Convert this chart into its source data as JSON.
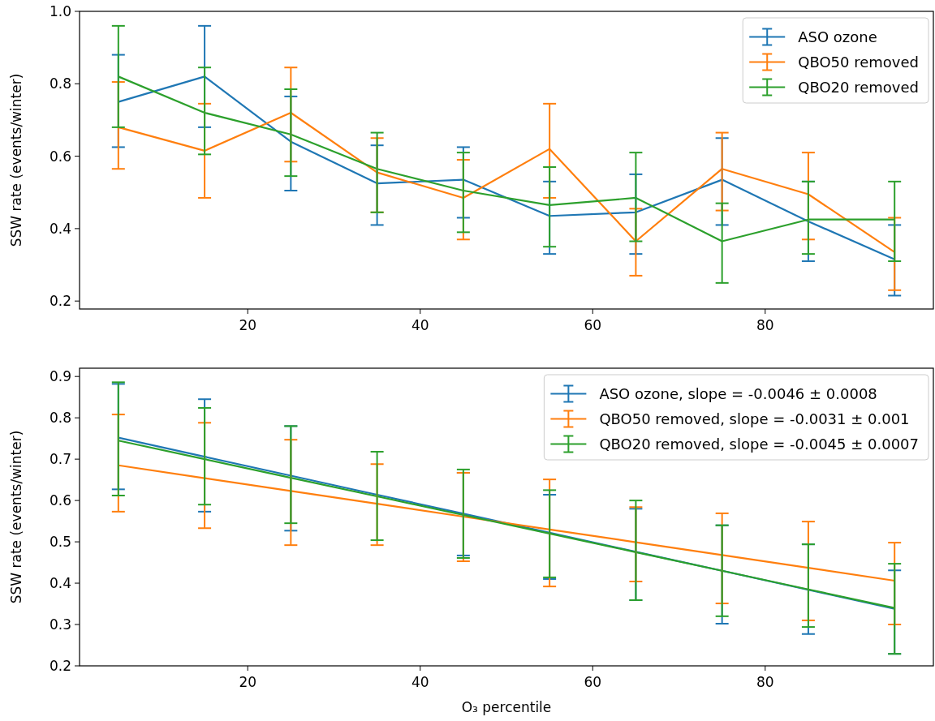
{
  "chart_data": [
    {
      "type": "line",
      "ylabel": "SSW rate (events/winter)",
      "x": [
        5,
        15,
        25,
        35,
        45,
        55,
        65,
        75,
        85,
        95
      ],
      "xlim": [
        0.5,
        99.5
      ],
      "xticks": [
        20,
        40,
        60,
        80
      ],
      "ylim": [
        0.178,
        1.0
      ],
      "yticks": [
        0.2,
        0.4,
        0.6,
        0.8,
        {
          "value": 1.0,
          "label": "1.0"
        }
      ],
      "legend": "top right",
      "series": [
        {
          "name": "ASO ozone",
          "color": "#1f77b4",
          "values": [
            0.75,
            0.82,
            0.64,
            0.525,
            0.535,
            0.435,
            0.445,
            0.535,
            0.42,
            0.315
          ],
          "errors": [
            [
              0.625,
              0.88
            ],
            [
              0.68,
              0.96
            ],
            [
              0.505,
              0.765
            ],
            [
              0.41,
              0.63
            ],
            [
              0.43,
              0.625
            ],
            [
              0.33,
              0.53
            ],
            [
              0.33,
              0.55
            ],
            [
              0.41,
              0.65
            ],
            [
              0.31,
              0.53
            ],
            [
              0.215,
              0.41
            ]
          ]
        },
        {
          "name": "QBO50  removed",
          "color": "#ff7f0e",
          "values": [
            0.68,
            0.615,
            0.72,
            0.555,
            0.485,
            0.62,
            0.365,
            0.565,
            0.495,
            0.335
          ],
          "errors": [
            [
              0.565,
              0.805
            ],
            [
              0.485,
              0.745
            ],
            [
              0.585,
              0.845
            ],
            [
              0.445,
              0.65
            ],
            [
              0.37,
              0.59
            ],
            [
              0.485,
              0.745
            ],
            [
              0.27,
              0.455
            ],
            [
              0.45,
              0.665
            ],
            [
              0.37,
              0.61
            ],
            [
              0.23,
              0.43
            ]
          ]
        },
        {
          "name": "QBO20 removed",
          "color": "#2ca02c",
          "values": [
            0.82,
            0.72,
            0.66,
            0.565,
            0.505,
            0.465,
            0.485,
            0.365,
            0.425,
            0.425
          ],
          "errors": [
            [
              0.68,
              0.96
            ],
            [
              0.605,
              0.845
            ],
            [
              0.545,
              0.785
            ],
            [
              0.445,
              0.665
            ],
            [
              0.39,
              0.61
            ],
            [
              0.35,
              0.57
            ],
            [
              0.365,
              0.61
            ],
            [
              0.25,
              0.47
            ],
            [
              0.33,
              0.53
            ],
            [
              0.31,
              0.53
            ]
          ]
        }
      ]
    },
    {
      "type": "line",
      "xlabel": "O₃ percentile",
      "ylabel": "SSW rate (events/winter)",
      "x": [
        5,
        15,
        25,
        35,
        45,
        55,
        65,
        75,
        85,
        95
      ],
      "xlim": [
        0.5,
        99.5
      ],
      "xticks": [
        20,
        40,
        60,
        80
      ],
      "ylim": [
        0.2,
        0.92
      ],
      "yticks": [
        0.2,
        0.3,
        0.4,
        0.5,
        0.6,
        0.7,
        0.8,
        0.9
      ],
      "legend": "top right",
      "series": [
        {
          "name": "ASO ozone, slope = -0.0046 ± 0.0008",
          "color": "#1f77b4",
          "values": [
            0.752,
            0.706,
            0.66,
            0.614,
            0.568,
            0.522,
            0.476,
            0.43,
            0.384,
            0.338
          ],
          "errors": [
            [
              0.627,
              0.882
            ],
            [
              0.573,
              0.845
            ],
            [
              0.527,
              0.78
            ],
            null,
            [
              0.467,
              0.667
            ],
            [
              0.41,
              0.614
            ],
            [
              0.359,
              0.58
            ],
            [
              0.302,
              0.54
            ],
            [
              0.277,
              0.494
            ],
            [
              0.229,
              0.431
            ]
          ]
        },
        {
          "name": "QBO50  removed, slope = -0.0031 ± 0.001",
          "color": "#ff7f0e",
          "values": [
            0.685,
            0.654,
            0.623,
            0.592,
            0.561,
            0.53,
            0.499,
            0.468,
            0.437,
            0.406
          ],
          "errors": [
            [
              0.573,
              0.808
            ],
            [
              0.533,
              0.788
            ],
            [
              0.492,
              0.747
            ],
            [
              0.492,
              0.688
            ],
            [
              0.453,
              0.667
            ],
            [
              0.392,
              0.651
            ],
            [
              0.404,
              0.584
            ],
            [
              0.351,
              0.569
            ],
            [
              0.31,
              0.549
            ],
            [
              0.3,
              0.498
            ]
          ]
        },
        {
          "name": "QBO20 removed, slope = -0.0045 ± 0.0007",
          "color": "#2ca02c",
          "values": [
            0.745,
            0.7,
            0.655,
            0.61,
            0.565,
            0.52,
            0.475,
            0.43,
            0.385,
            0.34
          ],
          "errors": [
            [
              0.612,
              0.886
            ],
            [
              0.59,
              0.824
            ],
            [
              0.545,
              0.78
            ],
            [
              0.504,
              0.718
            ],
            [
              0.461,
              0.675
            ],
            [
              0.414,
              0.625
            ],
            [
              0.359,
              0.6
            ],
            [
              0.32,
              0.54
            ],
            [
              0.294,
              0.494
            ],
            [
              0.229,
              0.447
            ]
          ]
        }
      ]
    }
  ]
}
